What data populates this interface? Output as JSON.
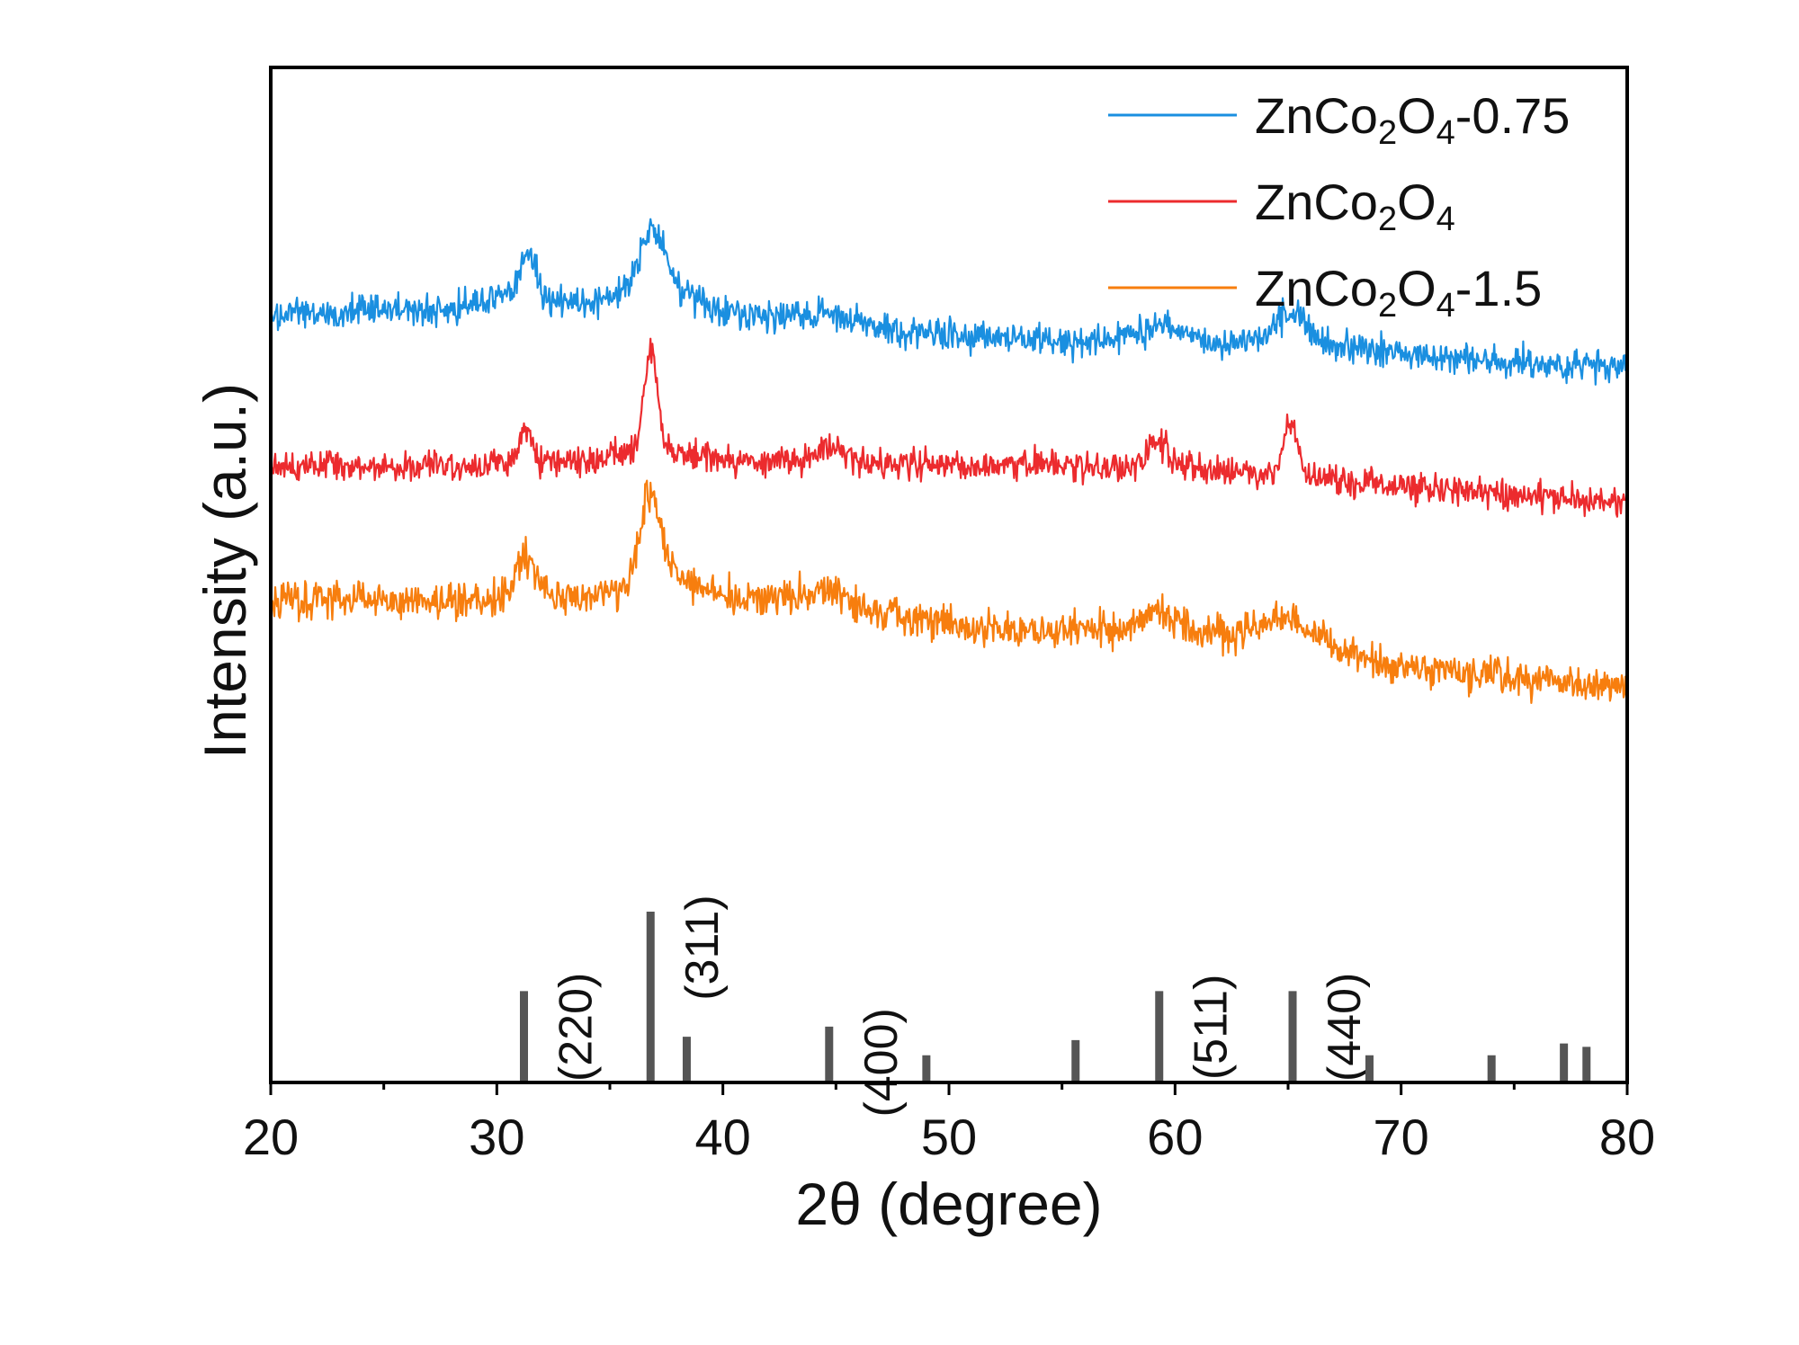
{
  "chart_data": {
    "type": "line",
    "xlabel": "2θ (degree)",
    "ylabel": "Intensity (a.u.)",
    "xlim": [
      20,
      80
    ],
    "xticks": [
      "20",
      "30",
      "40",
      "50",
      "60",
      "70",
      "80"
    ],
    "legend_position": "top-right",
    "grid": false,
    "series": [
      {
        "name": "ZnCo2O4-0.75",
        "legend": {
          "main": "ZnCo",
          "sub1": "2",
          "mid": "O",
          "sub2": "4",
          "suffix": "-0.75"
        },
        "color": "#1a8fe0",
        "baseline": [
          [
            20,
            350
          ],
          [
            36,
            335
          ],
          [
            50,
            375
          ],
          [
            65,
            385
          ],
          [
            80,
            410
          ]
        ],
        "peaks": [
          [
            31.4,
            45,
            0.3
          ],
          [
            31.0,
            15,
            1.0
          ],
          [
            36.9,
            65,
            0.5
          ],
          [
            37.2,
            20,
            1.4
          ],
          [
            44.6,
            12,
            1.2
          ],
          [
            59.3,
            18,
            1.0
          ],
          [
            65.1,
            28,
            0.6
          ],
          [
            65.5,
            10,
            1.5
          ]
        ],
        "noise": 26
      },
      {
        "name": "ZnCo2O4",
        "legend": {
          "main": "ZnCo",
          "sub1": "2",
          "mid": "O",
          "sub2": "4",
          "suffix": ""
        },
        "color": "#ec2b2e",
        "baseline": [
          [
            20,
            520
          ],
          [
            40,
            512
          ],
          [
            60,
            520
          ],
          [
            80,
            560
          ]
        ],
        "peaks": [
          [
            31.3,
            40,
            0.3
          ],
          [
            36.8,
            110,
            0.28
          ],
          [
            36.8,
            18,
            1.2
          ],
          [
            44.7,
            12,
            0.7
          ],
          [
            59.2,
            28,
            0.45
          ],
          [
            65.1,
            60,
            0.3
          ]
        ],
        "noise": 24
      },
      {
        "name": "ZnCo2O4-1.5",
        "legend": {
          "main": "ZnCo",
          "sub1": "2",
          "mid": "O",
          "sub2": "4",
          "suffix": "-1.5"
        },
        "color": "#f77e0e",
        "baseline": [
          [
            20,
            668
          ],
          [
            36,
            665
          ],
          [
            42,
            665
          ],
          [
            52,
            700
          ],
          [
            64,
            705
          ],
          [
            70,
            742
          ],
          [
            80,
            765
          ]
        ],
        "peaks": [
          [
            31.3,
            45,
            0.5
          ],
          [
            36.8,
            95,
            0.45
          ],
          [
            37.2,
            25,
            1.3
          ],
          [
            44.7,
            18,
            0.9
          ],
          [
            59.2,
            25,
            0.7
          ],
          [
            65.2,
            22,
            1.0
          ]
        ],
        "noise": 30
      }
    ],
    "reference_peaks": [
      {
        "x": 31.2,
        "height": 0.53,
        "label": "(220)"
      },
      {
        "x": 36.8,
        "height": 1.0,
        "label": "(311)"
      },
      {
        "x": 38.4,
        "height": 0.26
      },
      {
        "x": 44.7,
        "height": 0.32,
        "label": "(400)"
      },
      {
        "x": 49.0,
        "height": 0.15
      },
      {
        "x": 55.6,
        "height": 0.24
      },
      {
        "x": 59.3,
        "height": 0.53,
        "label": "(511)"
      },
      {
        "x": 65.2,
        "height": 0.53,
        "label": "(440)"
      },
      {
        "x": 68.6,
        "height": 0.15
      },
      {
        "x": 74.0,
        "height": 0.15
      },
      {
        "x": 77.2,
        "height": 0.22
      },
      {
        "x": 78.2,
        "height": 0.2
      }
    ]
  }
}
